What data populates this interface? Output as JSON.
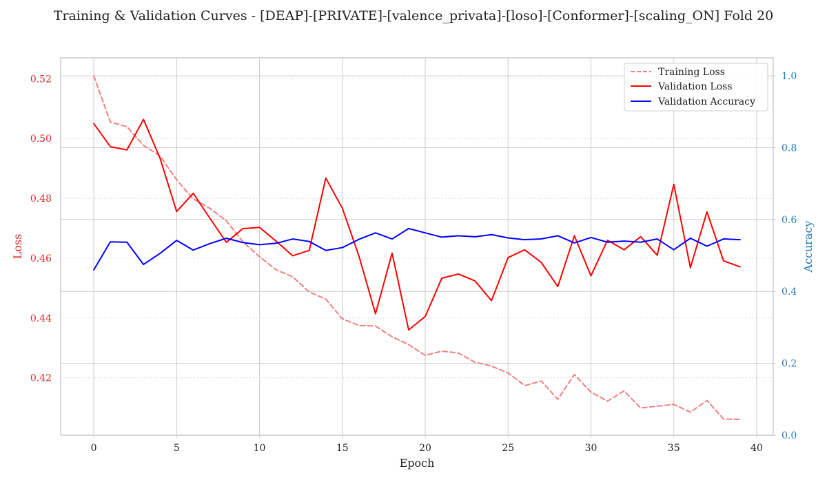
{
  "chart_data": {
    "type": "line",
    "title": "Training & Validation Curves - [DEAP]-[PRIVATE]-[valence_privata]-[loso]-[Conformer]-[scaling_ON] Fold 20",
    "xlabel": "Epoch",
    "ylabel_left": "Loss",
    "ylabel_right": "Accuracy",
    "xlim": [
      -2,
      41
    ],
    "ylim_left": [
      0.4008,
      0.527
    ],
    "ylim_right": [
      0.0,
      1.05
    ],
    "x_ticks": [
      "0",
      "5",
      "10",
      "15",
      "20",
      "25",
      "30",
      "35",
      "40"
    ],
    "y_left_ticks": [
      "0.42",
      "0.44",
      "0.46",
      "0.48",
      "0.50",
      "0.52"
    ],
    "y_right_ticks": [
      "0.0",
      "0.2",
      "0.4",
      "0.6",
      "0.8",
      "1.0"
    ],
    "grid": true,
    "legend_position": "top-right",
    "colors": {
      "left_axis": "#d62728",
      "right_axis": "#1f77b4",
      "training_loss": "#f08080",
      "validation_loss": "#ff0000",
      "validation_accuracy": "#0000ff"
    },
    "x": [
      0,
      1,
      2,
      3,
      4,
      5,
      6,
      7,
      8,
      9,
      10,
      11,
      12,
      13,
      14,
      15,
      16,
      17,
      18,
      19,
      20,
      21,
      22,
      23,
      24,
      25,
      26,
      27,
      28,
      29,
      30,
      31,
      32,
      33,
      34,
      35,
      36,
      37,
      38,
      39
    ],
    "series": [
      {
        "name": "Training Loss",
        "axis": "left",
        "style": "dashed",
        "values": [
          0.521,
          0.5055,
          0.504,
          0.4977,
          0.4942,
          0.4862,
          0.4798,
          0.4767,
          0.4725,
          0.4655,
          0.4605,
          0.4561,
          0.4538,
          0.4487,
          0.4463,
          0.4397,
          0.4375,
          0.4373,
          0.4337,
          0.4311,
          0.4275,
          0.4289,
          0.4283,
          0.4252,
          0.4239,
          0.4216,
          0.4174,
          0.4189,
          0.4128,
          0.4211,
          0.4152,
          0.4122,
          0.4156,
          0.4099,
          0.4105,
          0.4111,
          0.4085,
          0.4124,
          0.4062,
          0.4061
        ]
      },
      {
        "name": "Validation Loss",
        "axis": "left",
        "style": "solid",
        "values": [
          0.505,
          0.4973,
          0.4962,
          0.5064,
          0.4934,
          0.4756,
          0.4817,
          0.4734,
          0.4653,
          0.4699,
          0.4703,
          0.4657,
          0.4608,
          0.4626,
          0.4868,
          0.4767,
          0.4607,
          0.4414,
          0.4617,
          0.436,
          0.4405,
          0.4533,
          0.4547,
          0.4524,
          0.4458,
          0.4602,
          0.4628,
          0.4586,
          0.4505,
          0.4675,
          0.4541,
          0.466,
          0.4628,
          0.4672,
          0.461,
          0.4847,
          0.4568,
          0.4755,
          0.4591,
          0.4571
        ]
      },
      {
        "name": "Validation Accuracy",
        "axis": "right",
        "style": "solid",
        "values": [
          0.46,
          0.538,
          0.537,
          0.475,
          0.506,
          0.542,
          0.515,
          0.533,
          0.548,
          0.536,
          0.53,
          0.534,
          0.546,
          0.539,
          0.514,
          0.522,
          0.545,
          0.563,
          0.546,
          0.575,
          0.563,
          0.551,
          0.555,
          0.552,
          0.558,
          0.549,
          0.544,
          0.546,
          0.555,
          0.535,
          0.55,
          0.537,
          0.54,
          0.537,
          0.546,
          0.516,
          0.548,
          0.526,
          0.546,
          0.544
        ]
      }
    ]
  }
}
